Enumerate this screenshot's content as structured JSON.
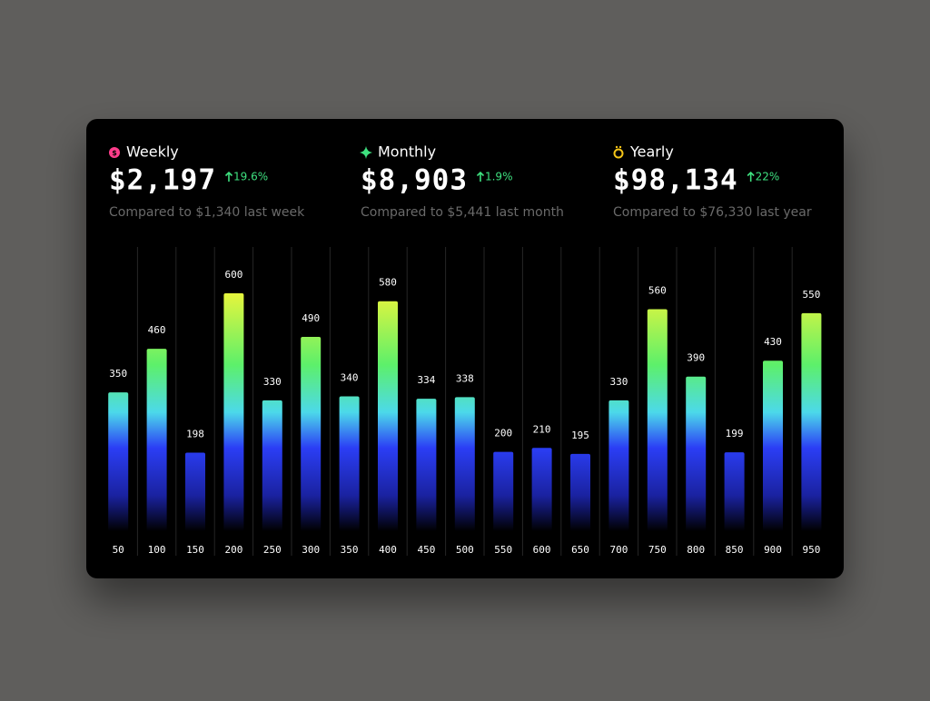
{
  "stats": [
    {
      "label": "Weekly",
      "value": "$2,197",
      "change": "19.6%",
      "comparison": "Compared to $1,340 last week"
    },
    {
      "label": "Monthly",
      "value": "$8,903",
      "change": "1.9%",
      "comparison": "Compared to $5,441 last month"
    },
    {
      "label": "Yearly",
      "value": "$98,134",
      "change": "22%",
      "comparison": "Compared to $76,330 last year"
    }
  ],
  "chart_data": {
    "type": "bar",
    "categories": [
      50,
      100,
      150,
      200,
      250,
      300,
      350,
      400,
      450,
      500,
      550,
      600,
      650,
      700,
      750,
      800,
      850,
      900,
      950
    ],
    "values": [
      350,
      460,
      198,
      600,
      330,
      490,
      340,
      580,
      334,
      338,
      200,
      210,
      195,
      330,
      560,
      390,
      199,
      430,
      550
    ],
    "gradient": [
      "#e6f53c",
      "#5df06a",
      "#4cd9ea",
      "#2b3ef5",
      "#1a22a0",
      "#000000"
    ]
  }
}
